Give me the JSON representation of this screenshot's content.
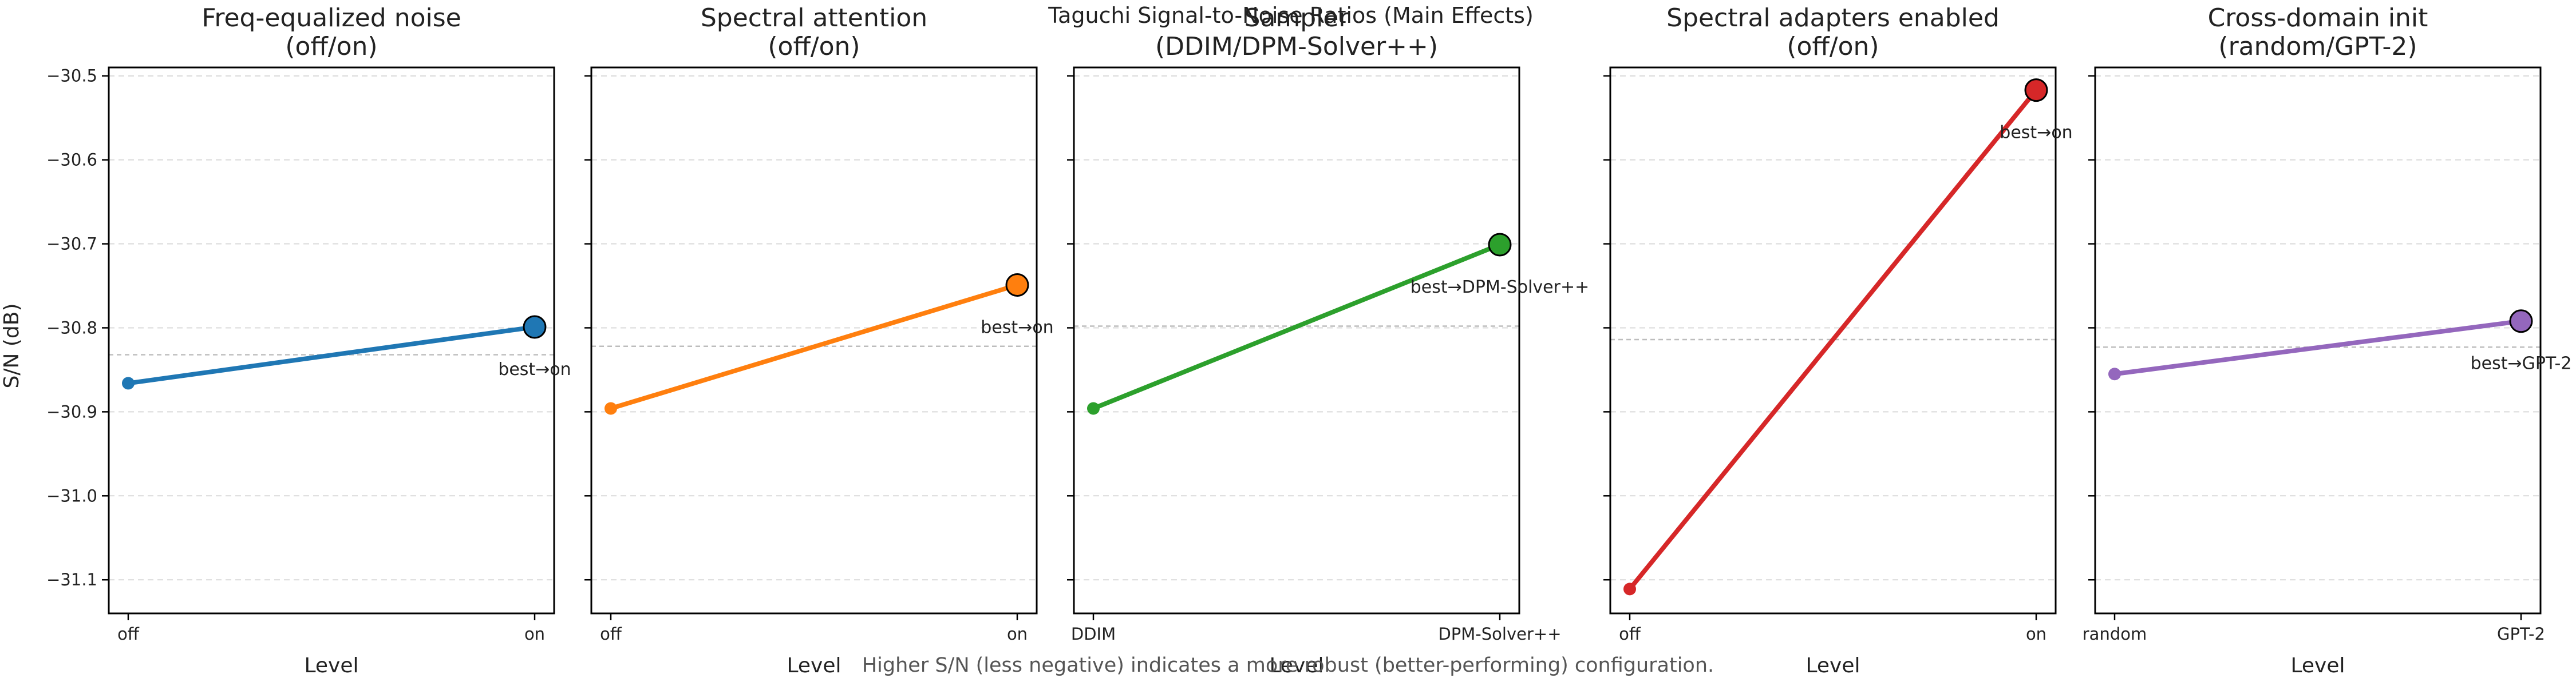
{
  "figure": {
    "suptitle": "Taguchi Signal-to-Noise Ratios (Main Effects)",
    "footnote": "Higher S/N (less negative) indicates a more robust (better-performing) configuration.",
    "ylabel": "S/N (dB)",
    "xlabel": "Level"
  },
  "chart_data": [
    {
      "type": "line",
      "title": "Freq-equalized noise\n(off/on)",
      "categories": [
        "off",
        "on"
      ],
      "values": [
        -30.866,
        -30.799
      ],
      "mean": -30.832,
      "best_label": "best→on",
      "color": "#1f77b4",
      "xlabel": "Level",
      "ylabel": "S/N (dB)",
      "ylim": [
        -31.14,
        -30.49
      ],
      "yticks": [
        -30.5,
        -30.6,
        -30.7,
        -30.8,
        -30.9,
        -31.0,
        -31.1
      ],
      "ytick_labels": [
        "−30.5",
        "−30.6",
        "−30.7",
        "−30.8",
        "−30.9",
        "−31.0",
        "−31.1"
      ],
      "grid": "y-dashed"
    },
    {
      "type": "line",
      "title": "Spectral attention\n(off/on)",
      "categories": [
        "off",
        "on"
      ],
      "values": [
        -30.896,
        -30.749
      ],
      "mean": -30.822,
      "best_label": "best→on",
      "color": "#ff7f0e",
      "xlabel": "Level",
      "ylim": [
        -31.14,
        -30.49
      ],
      "grid": "y-dashed"
    },
    {
      "type": "line",
      "title": "Sampler\n(DDIM/DPM-Solver++)",
      "categories": [
        "DDIM",
        "DPM-Solver++"
      ],
      "values": [
        -30.896,
        -30.701
      ],
      "mean": -30.798,
      "best_label": "best→DPM-Solver++",
      "color": "#2ca02c",
      "xlabel": "Level",
      "ylim": [
        -31.14,
        -30.49
      ],
      "grid": "y-dashed"
    },
    {
      "type": "line",
      "title": "Spectral adapters enabled\n(off/on)",
      "categories": [
        "off",
        "on"
      ],
      "values": [
        -31.111,
        -30.517
      ],
      "mean": -30.814,
      "best_label": "best→on",
      "color": "#d62728",
      "xlabel": "Level",
      "ylim": [
        -31.14,
        -30.49
      ],
      "grid": "y-dashed"
    },
    {
      "type": "line",
      "title": "Cross-domain init\n(random/GPT-2)",
      "categories": [
        "random",
        "GPT-2"
      ],
      "values": [
        -30.855,
        -30.792
      ],
      "mean": -30.823,
      "best_label": "best→GPT-2",
      "color": "#9467bd",
      "xlabel": "Level",
      "ylim": [
        -31.14,
        -30.49
      ],
      "grid": "y-dashed"
    }
  ]
}
